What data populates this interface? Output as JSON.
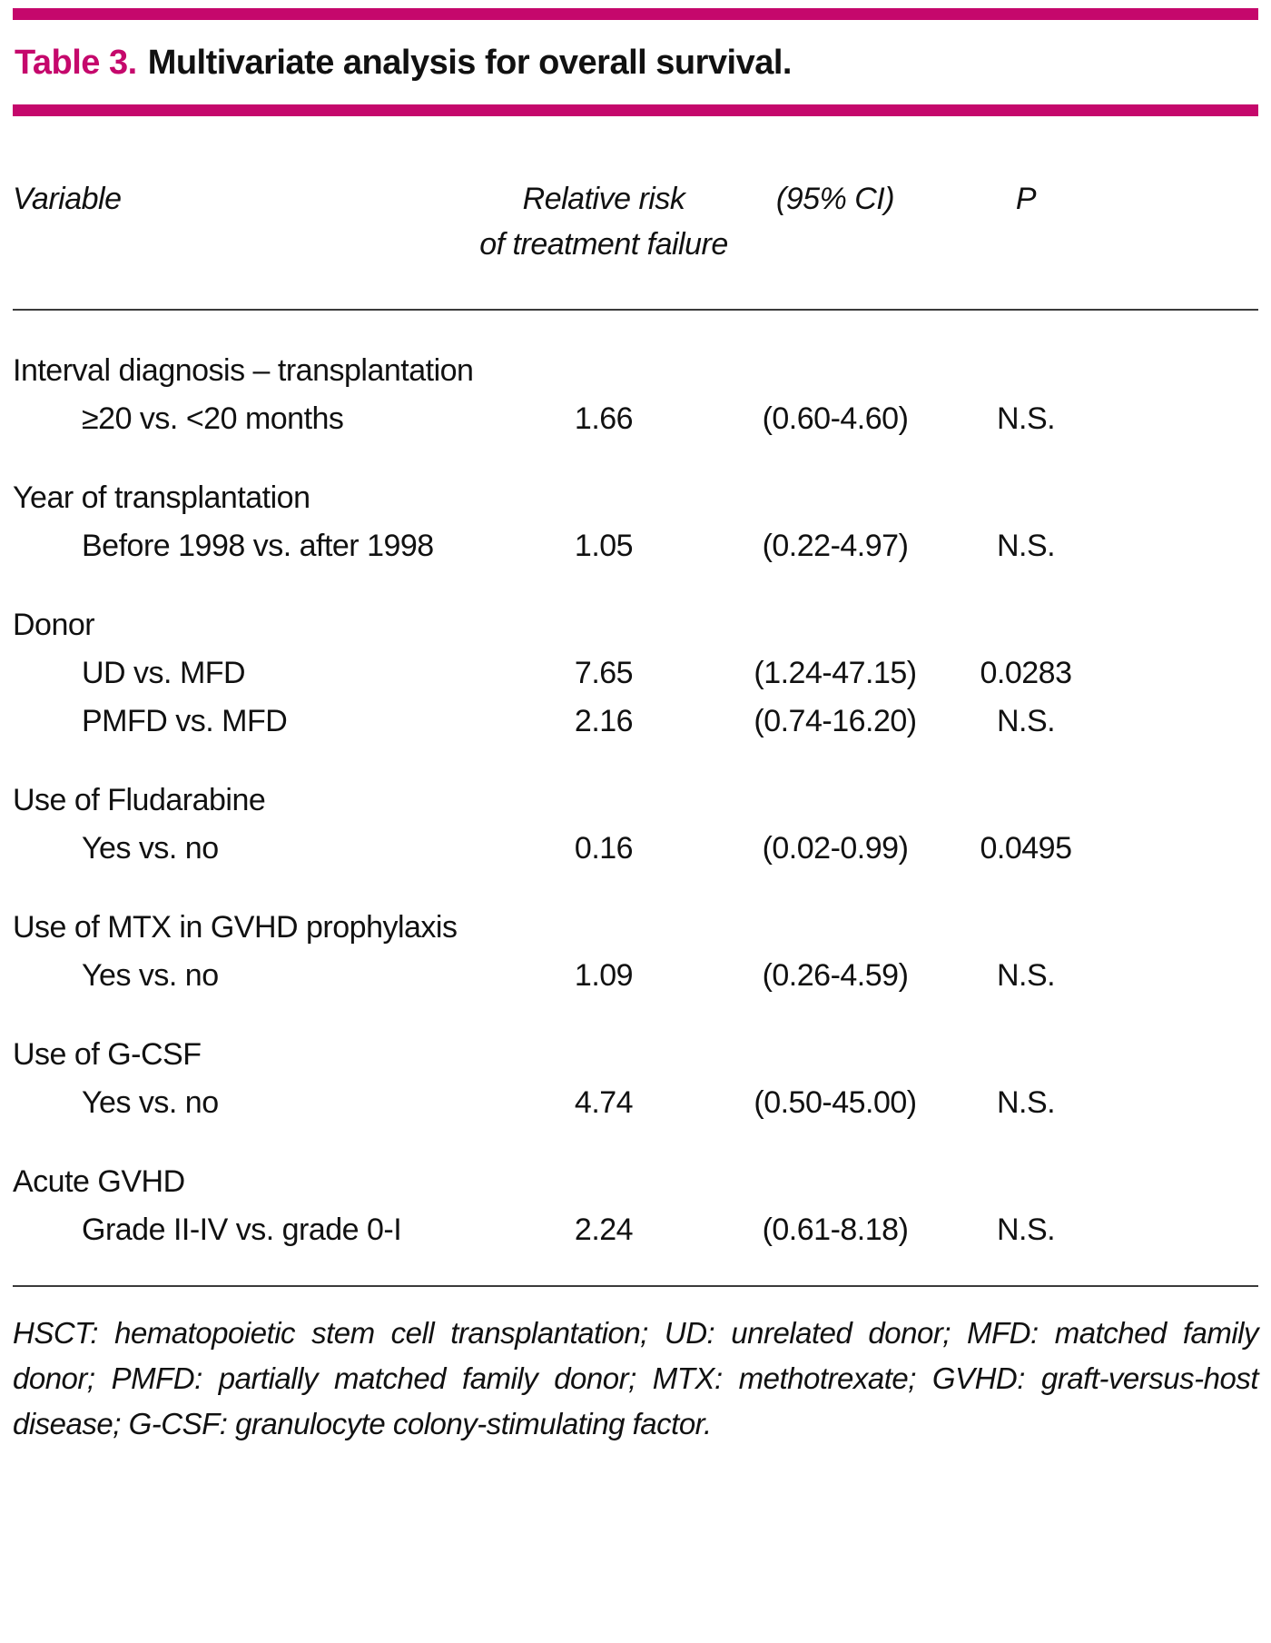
{
  "colors": {
    "accent": "#c5086c"
  },
  "table": {
    "label": "Table 3.",
    "title": "Multivariate analysis for overall survival.",
    "columns": {
      "variable": "Variable",
      "relative_risk_line1": "Relative risk",
      "relative_risk_line2": "of treatment failure",
      "ci": "(95% CI)",
      "p": "P"
    },
    "groups": [
      {
        "heading": "Interval diagnosis – transplantation",
        "rows": [
          {
            "variable": "≥20 vs. <20 months",
            "rr": "1.66",
            "ci": "(0.60-4.60)",
            "p": "N.S."
          }
        ]
      },
      {
        "heading": "Year of transplantation",
        "rows": [
          {
            "variable": "Before 1998 vs. after 1998",
            "rr": "1.05",
            "ci": "(0.22-4.97)",
            "p": "N.S."
          }
        ]
      },
      {
        "heading": "Donor",
        "rows": [
          {
            "variable": "UD vs. MFD",
            "rr": "7.65",
            "ci": "(1.24-47.15)",
            "p": "0.0283"
          },
          {
            "variable": "PMFD vs. MFD",
            "rr": "2.16",
            "ci": "(0.74-16.20)",
            "p": "N.S."
          }
        ]
      },
      {
        "heading": "Use of Fludarabine",
        "rows": [
          {
            "variable": "Yes vs. no",
            "rr": "0.16",
            "ci": "(0.02-0.99)",
            "p": "0.0495"
          }
        ]
      },
      {
        "heading": "Use of MTX in GVHD prophylaxis",
        "rows": [
          {
            "variable": "Yes vs. no",
            "rr": "1.09",
            "ci": "(0.26-4.59)",
            "p": "N.S."
          }
        ]
      },
      {
        "heading": "Use of G-CSF",
        "rows": [
          {
            "variable": "Yes vs. no",
            "rr": "4.74",
            "ci": "(0.50-45.00)",
            "p": "N.S."
          }
        ]
      },
      {
        "heading": "Acute GVHD",
        "rows": [
          {
            "variable": "Grade II-IV vs. grade 0-I",
            "rr": "2.24",
            "ci": "(0.61-8.18)",
            "p": "N.S."
          }
        ]
      }
    ],
    "footnote": "HSCT: hematopoietic stem cell transplantation; UD: unrelated donor; MFD: matched family donor; PMFD: partially matched family donor; MTX: methotrexate; GVHD: graft-versus-host disease; G-CSF: granulocyte colony-stimulating factor."
  }
}
